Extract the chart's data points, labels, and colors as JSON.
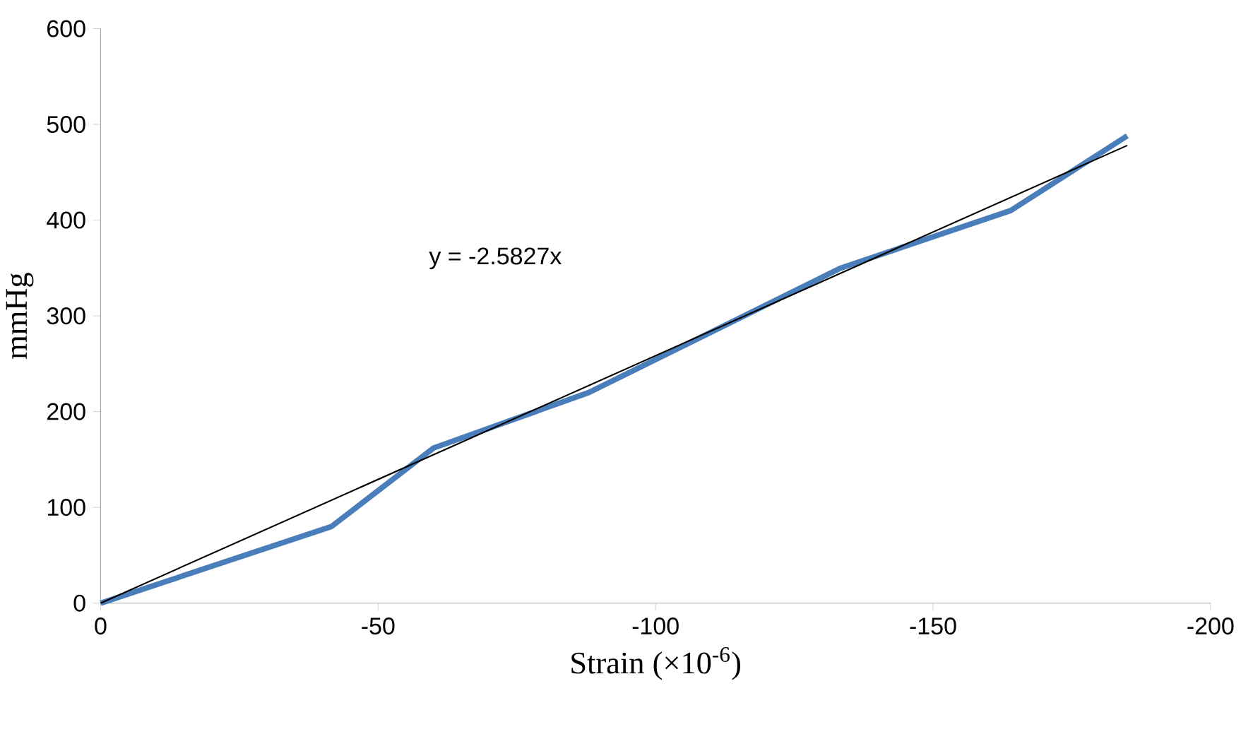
{
  "chart_data": {
    "type": "line",
    "xlabel": "Strain (×10$^{-6}$)",
    "ylabel": "mmHg",
    "xlim": [
      0,
      -200
    ],
    "xticks": [
      0,
      -50,
      -100,
      -150,
      -200
    ],
    "ylim": [
      0,
      600
    ],
    "yticks": [
      0,
      100,
      200,
      300,
      400,
      500,
      600
    ],
    "annotations": [
      "y = -2.5827x"
    ],
    "series": [
      {
        "color": "#4a7ebb",
        "x": [
          0,
          -41.6,
          -60,
          -88,
          -133.4,
          -164,
          -185
        ],
        "values": [
          0,
          80,
          162,
          220,
          350,
          410,
          488
        ]
      },
      {
        "color": "#000000",
        "x": [
          0,
          -185
        ],
        "values": [
          0,
          478
        ]
      }
    ]
  }
}
